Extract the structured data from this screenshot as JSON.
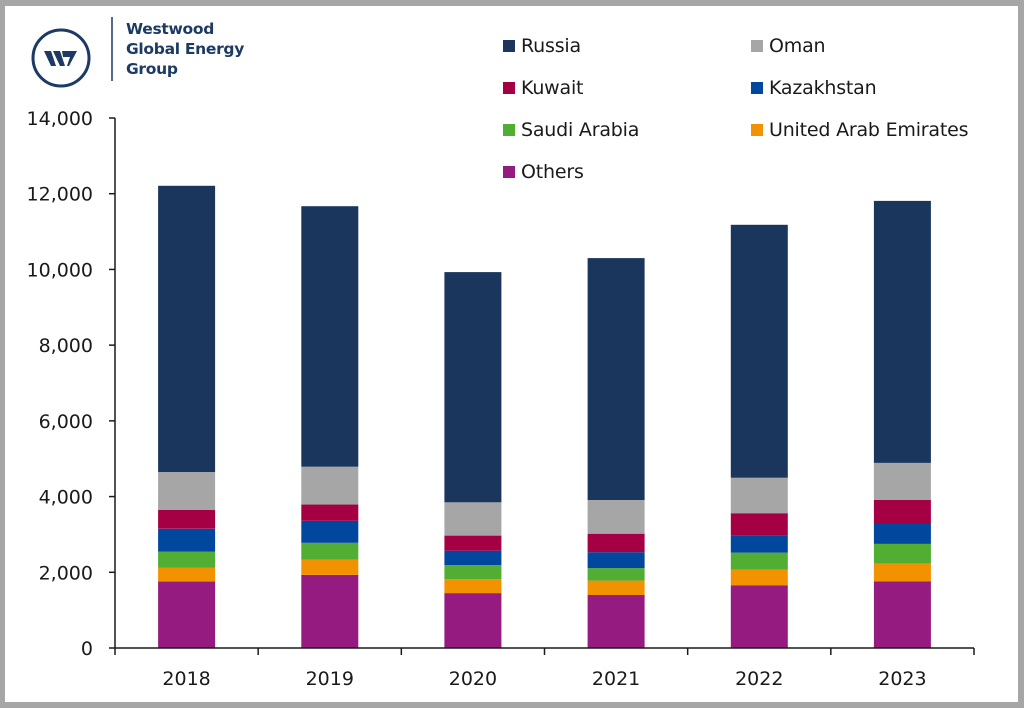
{
  "brand": {
    "logo_icon": "westwood-w-logo-icon",
    "name_lines": [
      "Westwood",
      "Global Energy",
      "Group"
    ],
    "color": "#1c3a63"
  },
  "chart_data": {
    "type": "bar",
    "stacked": true,
    "title": "",
    "xlabel": "",
    "ylabel": "",
    "categories": [
      "2018",
      "2019",
      "2020",
      "2021",
      "2022",
      "2023"
    ],
    "ylim": [
      0,
      14000
    ],
    "yticks": [
      0,
      2000,
      4000,
      6000,
      8000,
      10000,
      12000,
      14000
    ],
    "ytick_labels": [
      "0",
      "2,000",
      "4,000",
      "6,000",
      "8,000",
      "10,000",
      "12,000",
      "14,000"
    ],
    "grid": false,
    "legend_position": "top-right",
    "stack_order_bottom_to_top": [
      "Others",
      "United Arab Emirates",
      "Saudi Arabia",
      "Kazakhstan",
      "Kuwait",
      "Oman",
      "Russia"
    ],
    "series": [
      {
        "name": "Russia",
        "color": "#1b365d",
        "values": [
          7560,
          6880,
          6080,
          6390,
          6680,
          6920
        ]
      },
      {
        "name": "Oman",
        "color": "#a6a6a6",
        "values": [
          1000,
          1000,
          880,
          890,
          940,
          980
        ]
      },
      {
        "name": "Kuwait",
        "color": "#a50044",
        "values": [
          500,
          430,
          400,
          490,
          590,
          620
        ]
      },
      {
        "name": "Kazakhstan",
        "color": "#00479d",
        "values": [
          600,
          580,
          380,
          420,
          450,
          540
        ]
      },
      {
        "name": "Saudi Arabia",
        "color": "#52ae32",
        "values": [
          430,
          450,
          370,
          330,
          450,
          520
        ]
      },
      {
        "name": "United Arab Emirates",
        "color": "#f39200",
        "values": [
          360,
          400,
          370,
          380,
          420,
          470
        ]
      },
      {
        "name": "Others",
        "color": "#951b81",
        "values": [
          1760,
          1930,
          1450,
          1400,
          1650,
          1760
        ]
      }
    ],
    "totals": [
      12210,
      11670,
      9930,
      10310,
      11180,
      11810
    ]
  }
}
